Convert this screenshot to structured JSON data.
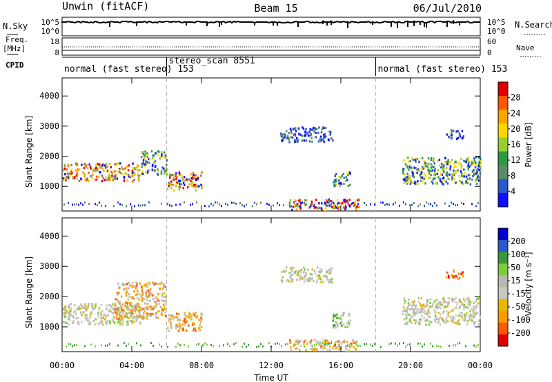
{
  "header": {
    "station": "Unwin (fitACF)",
    "beam": "Beam 15",
    "date": "06/Jul/2010"
  },
  "summary": {
    "nsky_label": "N.Sky",
    "nsearch_label": "N.Search",
    "freq_label_line1": "Freq.",
    "freq_label_line2": "[MHz]",
    "nave_label": "Nave",
    "cpid_label": "CPID",
    "nsky_ticks": [
      "10^5",
      "10^0"
    ],
    "nsearch_ticks": [
      "10^5",
      "10^0"
    ],
    "freq_ticks": [
      "18",
      "8"
    ],
    "nave_ticks": [
      "60",
      "0"
    ]
  },
  "cpid_segments": [
    {
      "label": "normal (fast stereo) 153",
      "start_hour": 0
    },
    {
      "label": "stereo_scan 8551",
      "start_hour": 6
    },
    {
      "label": "normal (fast stereo) 153",
      "start_hour": 18
    }
  ],
  "colors": {
    "power_scale": [
      "#1010ff",
      "#2a5acd",
      "#5a8a6a",
      "#2a9a40",
      "#9acd32",
      "#ffd700",
      "#ffa500",
      "#ff5a00",
      "#e00000"
    ],
    "velocity_scale": [
      "#e00000",
      "#ff5a00",
      "#ff9a00",
      "#e6b800",
      "#c8c8c0",
      "#b8b8b0",
      "#7ccd3c",
      "#3a9a3a",
      "#2a5acd",
      "#0000cc"
    ]
  },
  "chart_data": [
    {
      "type": "heatmap",
      "title": "",
      "xlabel": "",
      "ylabel": "Slant Range [km]",
      "colorbar_label": "Power [dB]",
      "colorbar_ticks": [
        "28",
        "24",
        "20",
        "16",
        "12",
        "8",
        "4"
      ],
      "xlim": [
        0,
        24
      ],
      "ylim": [
        180,
        4600
      ],
      "yticks": [
        "4000",
        "3000",
        "2000",
        "1000"
      ],
      "regions": [
        {
          "x0": 0.0,
          "x1": 4.5,
          "y0": 1200,
          "y1": 1800,
          "level": "high"
        },
        {
          "x0": 4.5,
          "x1": 6.0,
          "y0": 1400,
          "y1": 2200,
          "level": "mid"
        },
        {
          "x0": 6.0,
          "x1": 8.0,
          "y0": 900,
          "y1": 1500,
          "level": "high"
        },
        {
          "x0": 12.5,
          "x1": 15.5,
          "y0": 2500,
          "y1": 3000,
          "level": "low"
        },
        {
          "x0": 15.5,
          "x1": 16.5,
          "y0": 1000,
          "y1": 1500,
          "level": "mid"
        },
        {
          "x0": 13.0,
          "x1": 17.0,
          "y0": 250,
          "y1": 600,
          "level": "high"
        },
        {
          "x0": 19.5,
          "x1": 24.0,
          "y0": 1100,
          "y1": 2000,
          "level": "mid"
        },
        {
          "x0": 22.0,
          "x1": 23.0,
          "y0": 2600,
          "y1": 2900,
          "level": "low"
        }
      ]
    },
    {
      "type": "heatmap",
      "title": "",
      "xlabel": "Time UT",
      "ylabel": "Slant Range [km]",
      "colorbar_label": "Velocity [m s⁻¹]",
      "colorbar_ticks": [
        "200",
        "100",
        "50",
        "15",
        "-15",
        "-50",
        "-100",
        "-200"
      ],
      "xlim": [
        0,
        24
      ],
      "ylim": [
        180,
        4600
      ],
      "yticks": [
        "4000",
        "3000",
        "2000",
        "1000"
      ],
      "xticks": [
        "00:00",
        "04:00",
        "08:00",
        "12:00",
        "16:00",
        "20:00",
        "00:00"
      ],
      "regions": [
        {
          "x0": 0.0,
          "x1": 4.5,
          "y0": 1100,
          "y1": 1800,
          "level": "gray"
        },
        {
          "x0": 3.0,
          "x1": 6.0,
          "y0": 1300,
          "y1": 2500,
          "level": "orange"
        },
        {
          "x0": 6.0,
          "x1": 8.0,
          "y0": 900,
          "y1": 1500,
          "level": "orange"
        },
        {
          "x0": 12.5,
          "x1": 15.5,
          "y0": 2500,
          "y1": 3000,
          "level": "gray"
        },
        {
          "x0": 15.5,
          "x1": 16.5,
          "y0": 1000,
          "y1": 1500,
          "level": "green"
        },
        {
          "x0": 13.0,
          "x1": 17.0,
          "y0": 250,
          "y1": 600,
          "level": "orange"
        },
        {
          "x0": 19.5,
          "x1": 24.0,
          "y0": 1100,
          "y1": 2000,
          "level": "gray"
        },
        {
          "x0": 22.0,
          "x1": 23.0,
          "y0": 2600,
          "y1": 2900,
          "level": "red"
        }
      ]
    }
  ]
}
